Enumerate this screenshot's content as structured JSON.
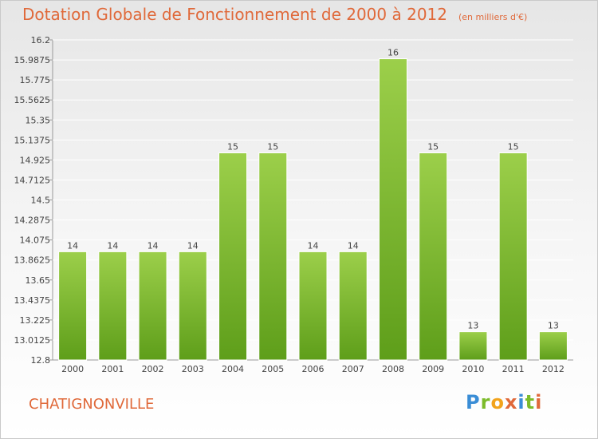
{
  "chart_data": {
    "type": "bar",
    "title": "Dotation Globale de Fonctionnement de 2000 à 2012",
    "subtitle": "(en milliers d'€)",
    "categories": [
      "2000",
      "2001",
      "2002",
      "2003",
      "2004",
      "2005",
      "2006",
      "2007",
      "2008",
      "2009",
      "2010",
      "2011",
      "2012"
    ],
    "values": [
      13.95,
      13.95,
      13.95,
      13.95,
      15,
      15,
      13.95,
      13.95,
      16,
      15,
      13.1,
      15,
      13.1
    ],
    "value_labels": [
      "14",
      "14",
      "14",
      "14",
      "15",
      "15",
      "14",
      "14",
      "16",
      "15",
      "13",
      "15",
      "13"
    ],
    "ylim": [
      12.8,
      16.2
    ],
    "yticks": [
      "12.8",
      "13.0125",
      "13.225",
      "13.4375",
      "13.65",
      "13.8625",
      "14.075",
      "14.2875",
      "14.5",
      "14.7125",
      "14.925",
      "15.1375",
      "15.35",
      "15.5625",
      "15.775",
      "15.9875",
      "16.2"
    ],
    "grid": true,
    "bar_color": "#7cbb2a"
  },
  "footer": {
    "town": "CHATIGNONVILLE",
    "logo": [
      "P",
      "r",
      "o",
      "x",
      "i",
      "t",
      "i"
    ],
    "logo_colors": [
      "#3a8dd6",
      "#7cbb2a",
      "#f2a31c",
      "#e0693a",
      "#3a8dd6",
      "#7cbb2a",
      "#e0693a"
    ]
  }
}
